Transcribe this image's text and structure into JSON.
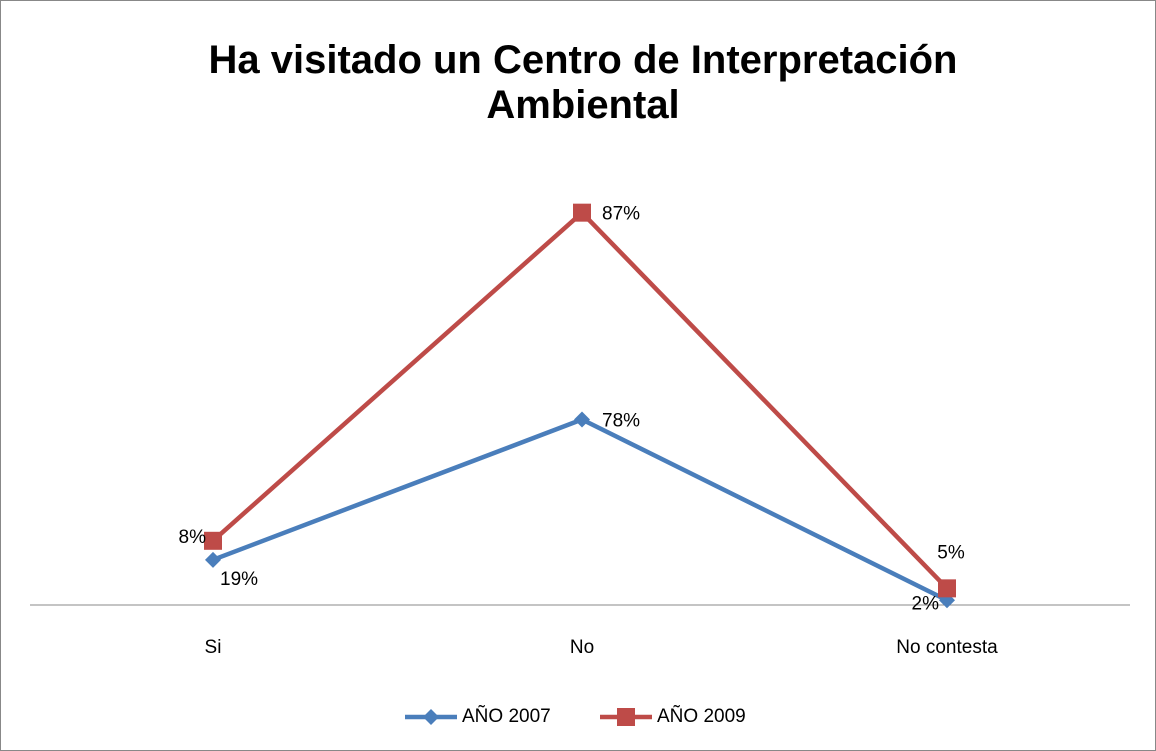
{
  "chart_data": {
    "type": "line",
    "stacked": true,
    "title": "Ha visitado un Centro de Interpretación Ambiental",
    "categories": [
      "Si",
      "No",
      "No contesta"
    ],
    "series": [
      {
        "name": "AÑO 2007",
        "color": "#4a7ebb",
        "marker": "diamond",
        "values": [
          19,
          78,
          2
        ],
        "value_labels": [
          "19%",
          "78%",
          "2%"
        ]
      },
      {
        "name": "AÑO 2009",
        "color": "#be4b48",
        "marker": "square",
        "values": [
          8,
          87,
          5
        ],
        "value_labels": [
          "8%",
          "87%",
          "5%"
        ]
      }
    ],
    "ylim": [
      0,
      180
    ],
    "legend": "bottom"
  }
}
